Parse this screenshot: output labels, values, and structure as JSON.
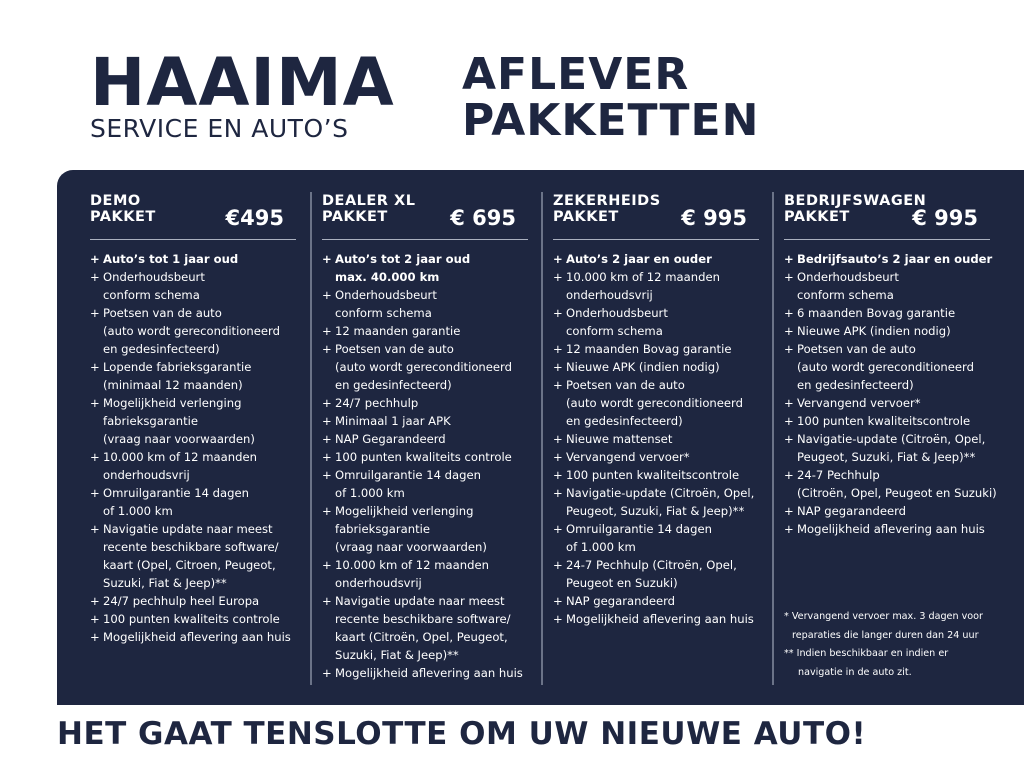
{
  "logo": {
    "main": "HAAIMA",
    "sub": "SERVICE EN AUTO’S"
  },
  "title": {
    "line1": "AFLEVER",
    "line2": "PAKKETTEN"
  },
  "packages": [
    {
      "name1": "DEMO",
      "name2": "PAKKET",
      "price": "€495",
      "items": [
        [
          "Auto’s tot 1 jaar oud"
        ],
        [
          "Onderhoudsbeurt",
          "conform schema"
        ],
        [
          "Poetsen van de auto",
          "(auto wordt gereconditioneerd",
          "en gedesinfecteerd)"
        ],
        [
          "Lopende fabrieksgarantie",
          "(minimaal 12 maanden)"
        ],
        [
          "Mogelijkheid verlenging",
          "fabrieksgarantie",
          "(vraag naar voorwaarden)"
        ],
        [
          "10.000 km of 12 maanden",
          "onderhoudsvrij"
        ],
        [
          "Omruilgarantie 14 dagen",
          "of 1.000 km"
        ],
        [
          "Navigatie update naar meest",
          "recente beschikbare software/",
          "kaart (Opel, Citroen,  Peugeot,",
          "Suzuki, Fiat & Jeep)**"
        ],
        [
          "24/7 pechhulp heel Europa"
        ],
        [
          "100 punten kwaliteits controle"
        ],
        [
          "Mogelijkheid aflevering aan huis"
        ]
      ]
    },
    {
      "name1": "DEALER XL",
      "name2": "PAKKET",
      "price": "€ 695",
      "items": [
        [
          "Auto’s tot 2 jaar oud",
          "max. 40.000 km"
        ],
        [
          "Onderhoudsbeurt",
          "conform schema"
        ],
        [
          "12 maanden garantie"
        ],
        [
          "Poetsen van de auto",
          "(auto wordt gereconditioneerd",
          "en gedesinfecteerd)"
        ],
        [
          "24/7 pechhulp"
        ],
        [
          "Minimaal 1 jaar APK"
        ],
        [
          "NAP Gegarandeerd"
        ],
        [
          "100 punten kwaliteits controle"
        ],
        [
          "Omruilgarantie 14 dagen",
          "of 1.000 km"
        ],
        [
          "Mogelijkheid verlenging",
          "fabrieksgarantie",
          "(vraag naar voorwaarden)"
        ],
        [
          "10.000 km of 12 maanden",
          "onderhoudsvrij"
        ],
        [
          "Navigatie update naar meest",
          "recente beschikbare software/",
          "kaart (Citroën, Opel, Peugeot,",
          "Suzuki, Fiat & Jeep)**"
        ],
        [
          "Mogelijkheid aflevering aan huis"
        ]
      ]
    },
    {
      "name1": "ZEKERHEIDS",
      "name2": "PAKKET",
      "price": "€ 995",
      "items": [
        [
          "Auto’s 2 jaar en ouder"
        ],
        [
          "10.000 km of 12 maanden",
          "onderhoudsvrij"
        ],
        [
          "Onderhoudsbeurt",
          "conform schema"
        ],
        [
          "12 maanden Bovag garantie"
        ],
        [
          "Nieuwe APK (indien nodig)"
        ],
        [
          "Poetsen van de auto",
          "(auto wordt gereconditioneerd",
          "en gedesinfecteerd)"
        ],
        [
          "Nieuwe mattenset"
        ],
        [
          "Vervangend vervoer*"
        ],
        [
          "100 punten kwaliteitscontrole"
        ],
        [
          "Navigatie-update (Citroën, Opel,",
          "Peugeot, Suzuki, Fiat & Jeep)**"
        ],
        [
          "Omruilgarantie 14 dagen",
          "of 1.000 km"
        ],
        [
          "24-7 Pechhulp (Citroën, Opel,",
          "Peugeot en Suzuki)"
        ],
        [
          "NAP gegarandeerd"
        ],
        [
          "Mogelijkheid aflevering aan huis"
        ]
      ]
    },
    {
      "name1": "BEDRIJFSWAGEN",
      "name2": "PAKKET",
      "price": "€ 995",
      "items": [
        [
          "Bedrijfsauto’s 2 jaar en ouder"
        ],
        [
          "Onderhoudsbeurt",
          "conform schema"
        ],
        [
          "6 maanden Bovag garantie"
        ],
        [
          "Nieuwe APK (indien nodig)"
        ],
        [
          "Poetsen van de auto",
          "(auto wordt gereconditioneerd",
          "en gedesinfecteerd)"
        ],
        [
          "Vervangend vervoer*"
        ],
        [
          "100 punten kwaliteitscontrole"
        ],
        [
          "Navigatie-update (Citroën, Opel,",
          "Peugeot, Suzuki, Fiat & Jeep)**"
        ],
        [
          "24-7 Pechhulp",
          "(Citroën, Opel, Peugeot en Suzuki)"
        ],
        [
          "NAP gegarandeerd"
        ],
        [
          "Mogelijkheid aflevering aan huis"
        ]
      ]
    }
  ],
  "notes": {
    "n1a": "* Vervangend vervoer max. 3 dagen voor",
    "n1b": "reparaties die langer duren dan 24 uur",
    "n2a": "** Indien beschikbaar en indien er",
    "n2b": "navigatie in de auto zit."
  },
  "slogan": "HET GAAT TENSLOTTE OM UW NIEUWE AUTO!",
  "colors": {
    "navy": "#1e2640",
    "white": "#ffffff"
  }
}
